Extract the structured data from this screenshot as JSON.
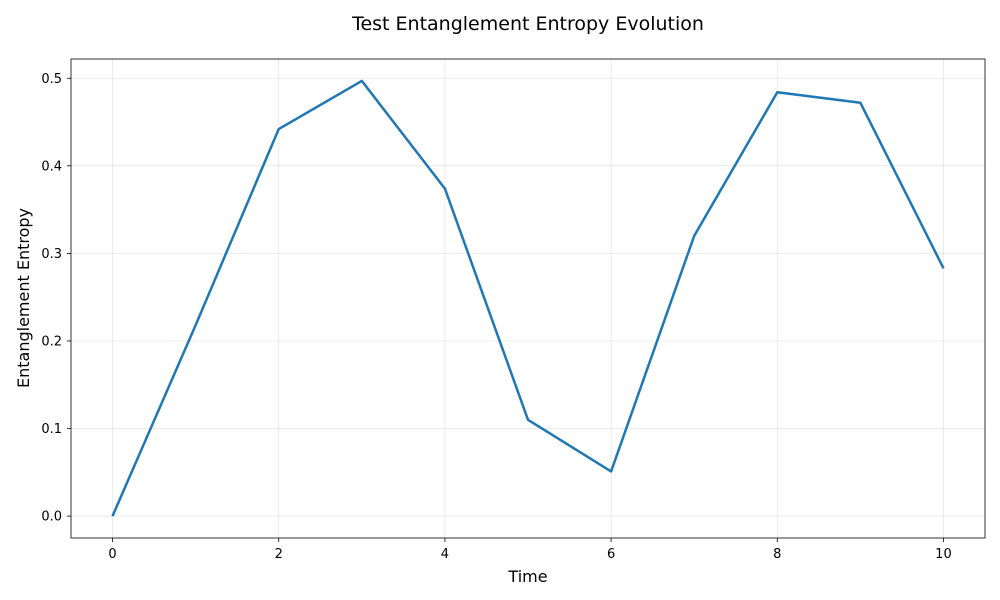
{
  "chart_data": {
    "type": "line",
    "title": "Test Entanglement Entropy Evolution",
    "xlabel": "Time",
    "ylabel": "Entanglement Entropy",
    "xlim": [
      -0.5,
      10.5
    ],
    "ylim": [
      -0.025,
      0.522
    ],
    "x_ticks": [
      0,
      2,
      4,
      6,
      8,
      10
    ],
    "x_tick_labels": [
      "0",
      "2",
      "4",
      "6",
      "8",
      "10"
    ],
    "y_ticks": [
      0.0,
      0.1,
      0.2,
      0.3,
      0.4,
      0.5
    ],
    "y_tick_labels": [
      "0.0",
      "0.1",
      "0.2",
      "0.3",
      "0.4",
      "0.5"
    ],
    "grid": true,
    "legend": "none",
    "series": [
      {
        "color": "#1f77b4",
        "x": [
          0,
          1,
          2,
          3,
          4,
          5,
          6,
          7,
          8,
          9,
          10
        ],
        "values": [
          0.0,
          0.218,
          0.442,
          0.497,
          0.374,
          0.11,
          0.051,
          0.32,
          0.484,
          0.472,
          0.283
        ]
      }
    ]
  }
}
